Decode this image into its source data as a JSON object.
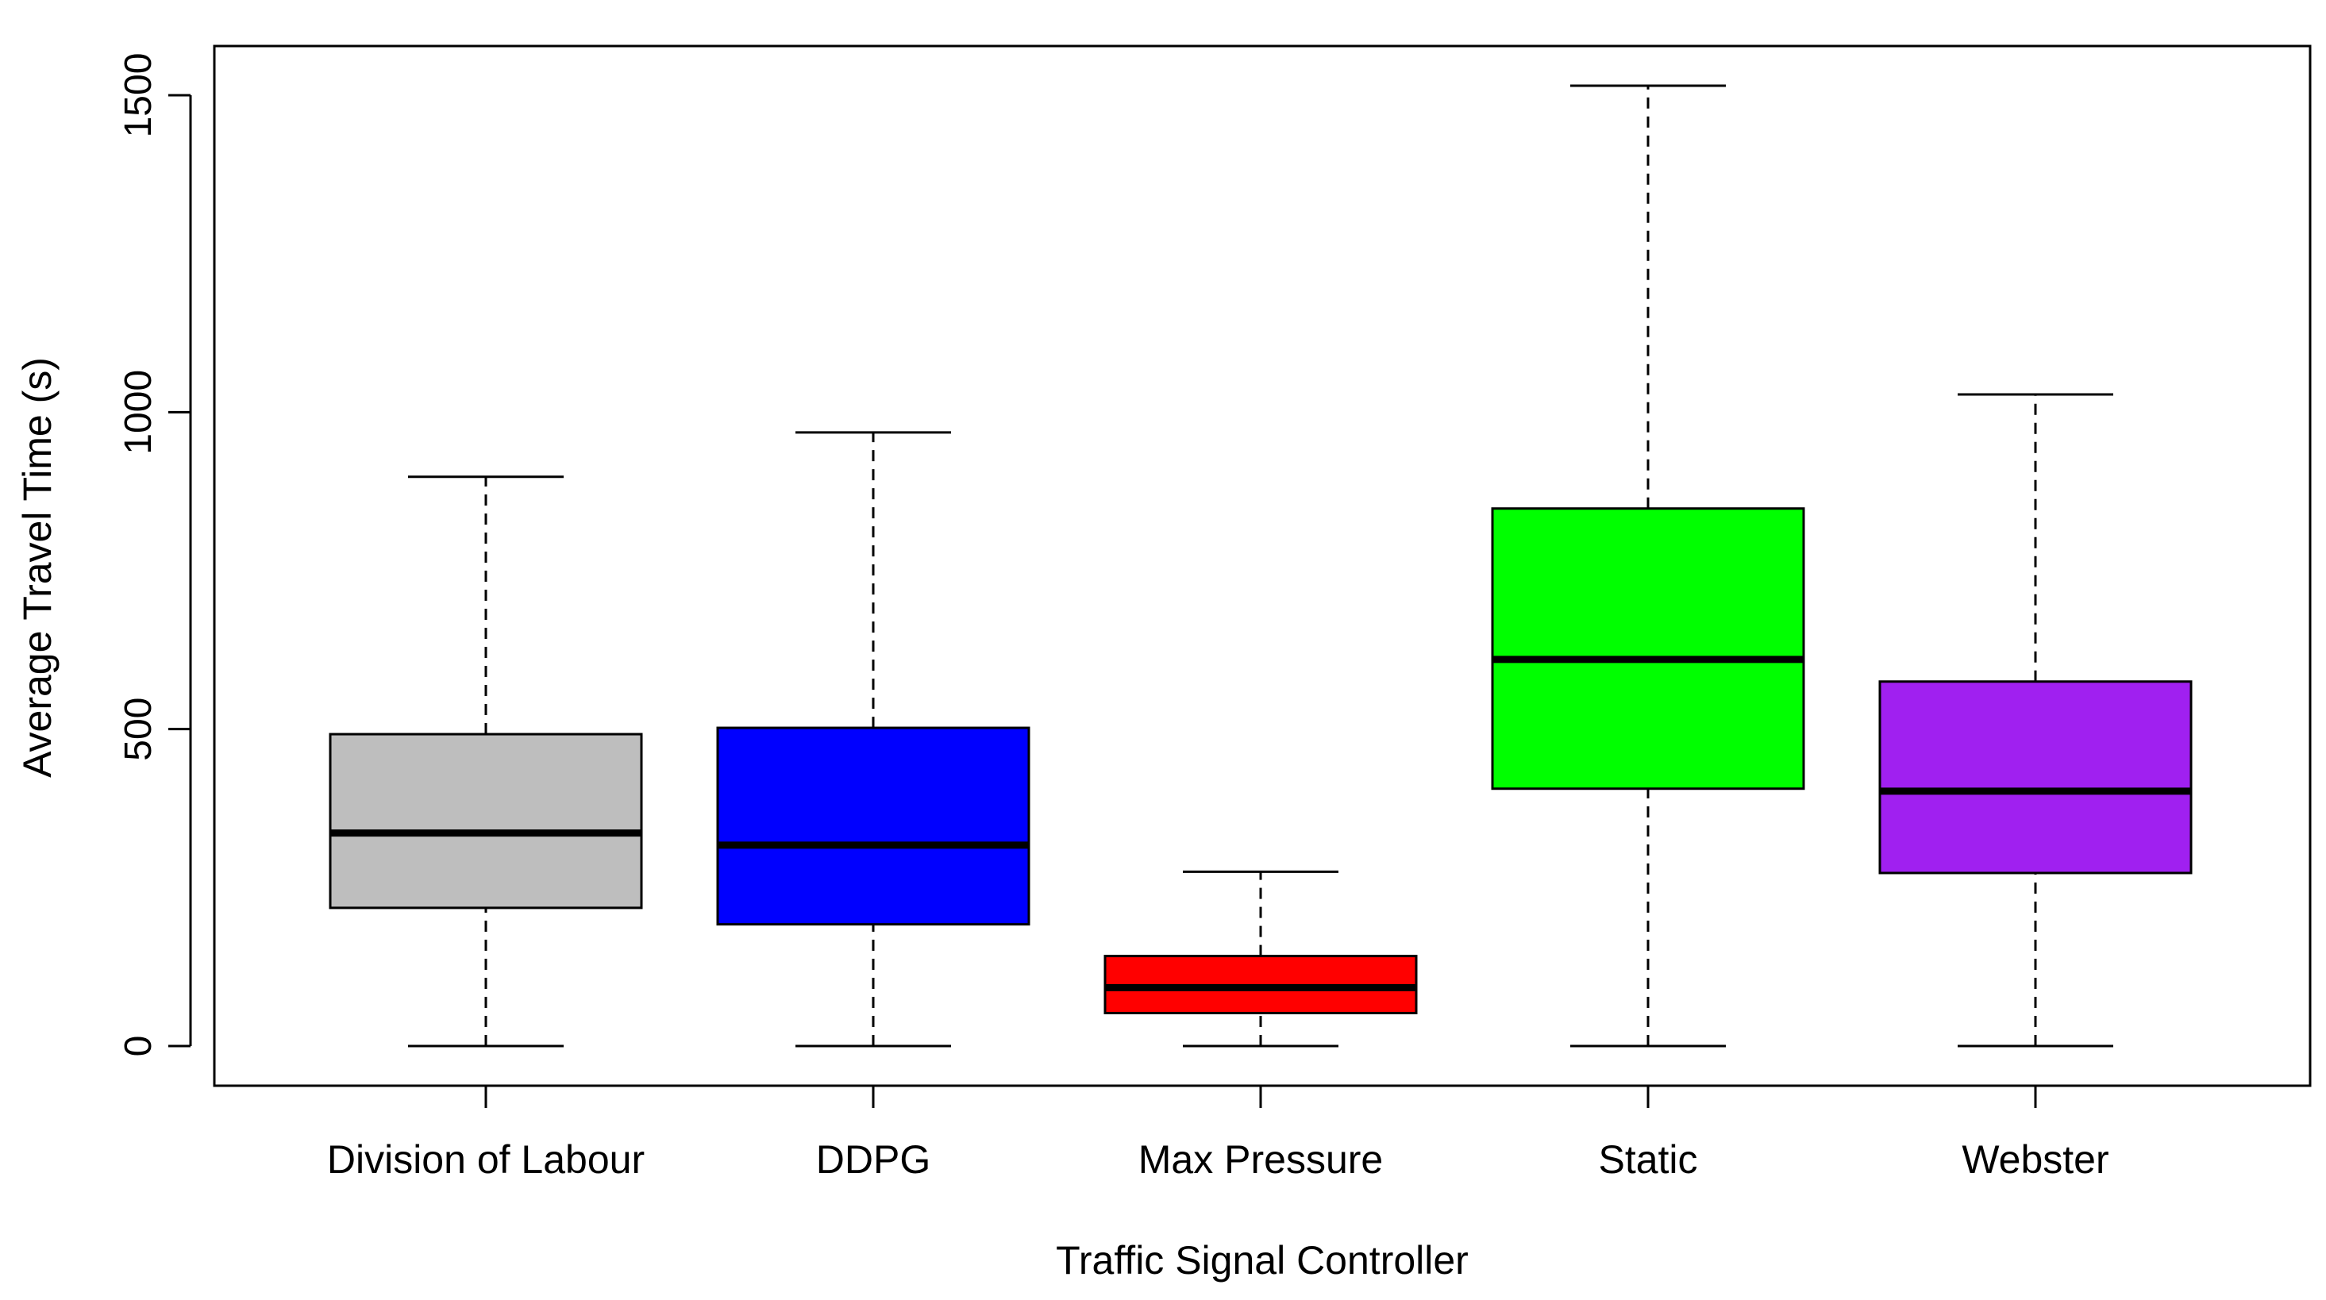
{
  "chart_data": {
    "type": "boxplot",
    "title": "",
    "xlabel": "Traffic Signal Controller",
    "ylabel": "Average Travel Time (s)",
    "ylim": [
      -60,
      1580
    ],
    "yticks": [
      0,
      500,
      1000,
      1500
    ],
    "ytick_labels": [
      "0",
      "500",
      "1000",
      "1500"
    ],
    "grid": false,
    "categories": [
      "Division of Labour",
      "DDPG",
      "Max Pressure",
      "Static",
      "Webster"
    ],
    "series": [
      {
        "name": "Division of Labour",
        "color": "#bebebe",
        "min": 0,
        "q1": 218,
        "median": 336,
        "q3": 492,
        "max": 898
      },
      {
        "name": "DDPG",
        "color": "#0000ff",
        "min": 0,
        "q1": 192,
        "median": 317,
        "q3": 502,
        "max": 968
      },
      {
        "name": "Max Pressure",
        "color": "#ff0000",
        "min": 0,
        "q1": 52,
        "median": 92,
        "q3": 142,
        "max": 275
      },
      {
        "name": "Static",
        "color": "#00ff00",
        "min": 0,
        "q1": 406,
        "median": 610,
        "q3": 848,
        "max": 1515
      },
      {
        "name": "Webster",
        "color": "#a020f0",
        "min": 0,
        "q1": 273,
        "median": 402,
        "q3": 575,
        "max": 1028
      }
    ]
  }
}
